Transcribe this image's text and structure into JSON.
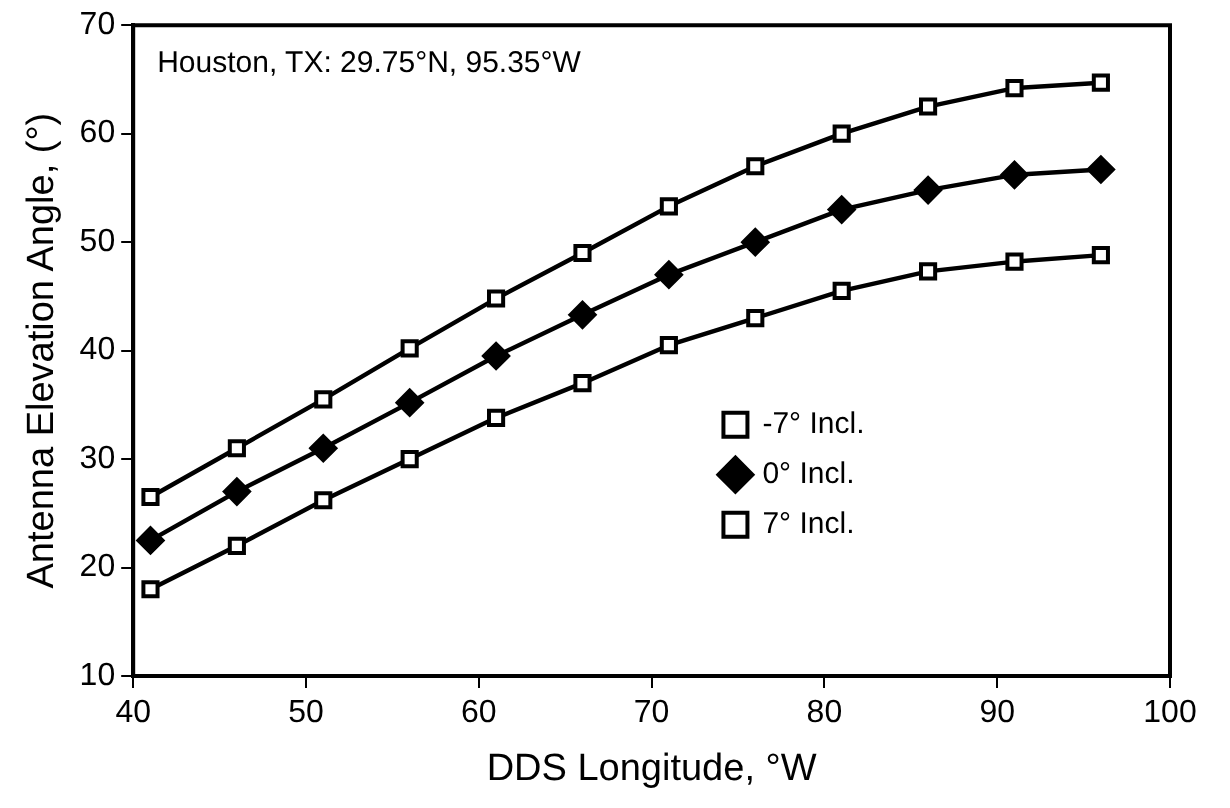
{
  "chart_data": {
    "type": "line",
    "xlabel": "DDS Longitude, °W",
    "ylabel": "Antenna Elevation Angle, (°)",
    "annotations": [
      "Houston, TX: 29.75°N, 95.35°W"
    ],
    "x": [
      41,
      46,
      51,
      56,
      61,
      66,
      71,
      76,
      81,
      86,
      91,
      96
    ],
    "series": [
      {
        "name": "-7° Incl.",
        "color": "#000000",
        "marker": "square",
        "values": [
          18,
          22,
          26.2,
          30,
          33.8,
          37,
          40.5,
          43,
          45.5,
          47.3,
          48.2,
          48.8
        ]
      },
      {
        "name": "0° Incl.",
        "color": "#000000",
        "marker": "diamond",
        "values": [
          22.5,
          27,
          31,
          35.2,
          39.5,
          43.3,
          47,
          50,
          53,
          54.8,
          56.2,
          56.7
        ]
      },
      {
        "name": "7° Incl.",
        "color": "#000000",
        "marker": "square",
        "values": [
          26.5,
          31,
          35.5,
          40.2,
          44.8,
          49,
          53.3,
          57,
          60,
          62.5,
          64.2,
          64.7
        ]
      }
    ],
    "xlim": [
      40,
      100
    ],
    "xticks": [
      40,
      50,
      60,
      70,
      80,
      90,
      100
    ],
    "ylim": [
      10,
      70
    ],
    "yticks": [
      10,
      20,
      30,
      40,
      50,
      60,
      70
    ],
    "grid": false,
    "legend": "right",
    "line_style": "solid"
  }
}
